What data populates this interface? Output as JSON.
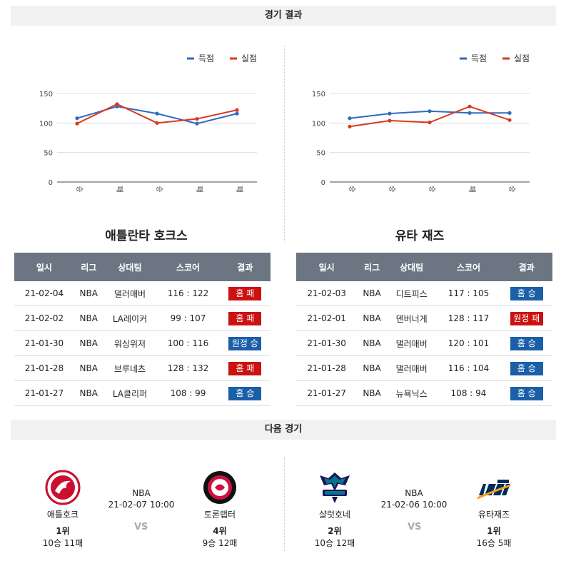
{
  "results_header": "경기 결과",
  "next_header": "다음 경기",
  "legend": {
    "scored": "득점",
    "allowed": "실점"
  },
  "colors": {
    "scored": "#2e6bbf",
    "allowed": "#d9381e"
  },
  "charts": [
    {
      "chart_data": {
        "type": "line",
        "categories": [
          "승",
          "패",
          "승",
          "패",
          "패"
        ],
        "series": [
          {
            "name": "득점",
            "values": [
              108,
              128,
              116,
              99,
              116
            ]
          },
          {
            "name": "실점",
            "values": [
              99,
              132,
              100,
              107,
              122
            ]
          }
        ],
        "ylim": [
          0,
          150
        ],
        "yticks": [
          0,
          50,
          100,
          150
        ],
        "legend_position": "top-right",
        "grid": true
      }
    },
    {
      "chart_data": {
        "type": "line",
        "categories": [
          "승",
          "승",
          "승",
          "패",
          "승"
        ],
        "series": [
          {
            "name": "득점",
            "values": [
              108,
              116,
              120,
              117,
              117
            ]
          },
          {
            "name": "실점",
            "values": [
              94,
              104,
              101,
              128,
              105
            ]
          }
        ],
        "ylim": [
          0,
          150
        ],
        "yticks": [
          0,
          50,
          100,
          150
        ],
        "legend_position": "top-right",
        "grid": true
      }
    }
  ],
  "table_headers": [
    "일시",
    "리그",
    "상대팀",
    "스코어",
    "결과"
  ],
  "teams": [
    {
      "name": "애틀란타 호크스",
      "rows": [
        {
          "date": "21-02-04",
          "league": "NBA",
          "opponent": "댈러매버",
          "score": "116 : 122",
          "result": "홈 패",
          "win": false
        },
        {
          "date": "21-02-02",
          "league": "NBA",
          "opponent": "LA레이커",
          "score": "99 : 107",
          "result": "홈 패",
          "win": false
        },
        {
          "date": "21-01-30",
          "league": "NBA",
          "opponent": "워싱위저",
          "score": "100 : 116",
          "result": "원정 승",
          "win": true
        },
        {
          "date": "21-01-28",
          "league": "NBA",
          "opponent": "브루네츠",
          "score": "128 : 132",
          "result": "홈 패",
          "win": false
        },
        {
          "date": "21-01-27",
          "league": "NBA",
          "opponent": "LA클리퍼",
          "score": "108 : 99",
          "result": "홈 승",
          "win": true
        }
      ]
    },
    {
      "name": "유타 재즈",
      "rows": [
        {
          "date": "21-02-03",
          "league": "NBA",
          "opponent": "디트피스",
          "score": "117 : 105",
          "result": "홈 승",
          "win": true
        },
        {
          "date": "21-02-01",
          "league": "NBA",
          "opponent": "덴버너게",
          "score": "128 : 117",
          "result": "원정 패",
          "win": false
        },
        {
          "date": "21-01-30",
          "league": "NBA",
          "opponent": "댈러매버",
          "score": "120 : 101",
          "result": "홈 승",
          "win": true
        },
        {
          "date": "21-01-28",
          "league": "NBA",
          "opponent": "댈러매버",
          "score": "116 : 104",
          "result": "홈 승",
          "win": true
        },
        {
          "date": "21-01-27",
          "league": "NBA",
          "opponent": "뉴욕닉스",
          "score": "108 : 94",
          "result": "홈 승",
          "win": true
        }
      ]
    }
  ],
  "next_games": [
    {
      "home": {
        "name": "애틀호크",
        "rank": "1위",
        "record": "10승 11패",
        "logo": "atlanta-hawks-logo"
      },
      "league": "NBA",
      "datetime": "21-02-07 10:00",
      "vs": "VS",
      "away": {
        "name": "토론랩터",
        "rank": "4위",
        "record": "9승 12패",
        "logo": "toronto-raptors-logo"
      }
    },
    {
      "home": {
        "name": "샬럿호네",
        "rank": "2위",
        "record": "10승 12패",
        "logo": "charlotte-hornets-logo"
      },
      "league": "NBA",
      "datetime": "21-02-06 10:00",
      "vs": "VS",
      "away": {
        "name": "유타재즈",
        "rank": "1위",
        "record": "16승 5패",
        "logo": "utah-jazz-logo"
      }
    }
  ]
}
